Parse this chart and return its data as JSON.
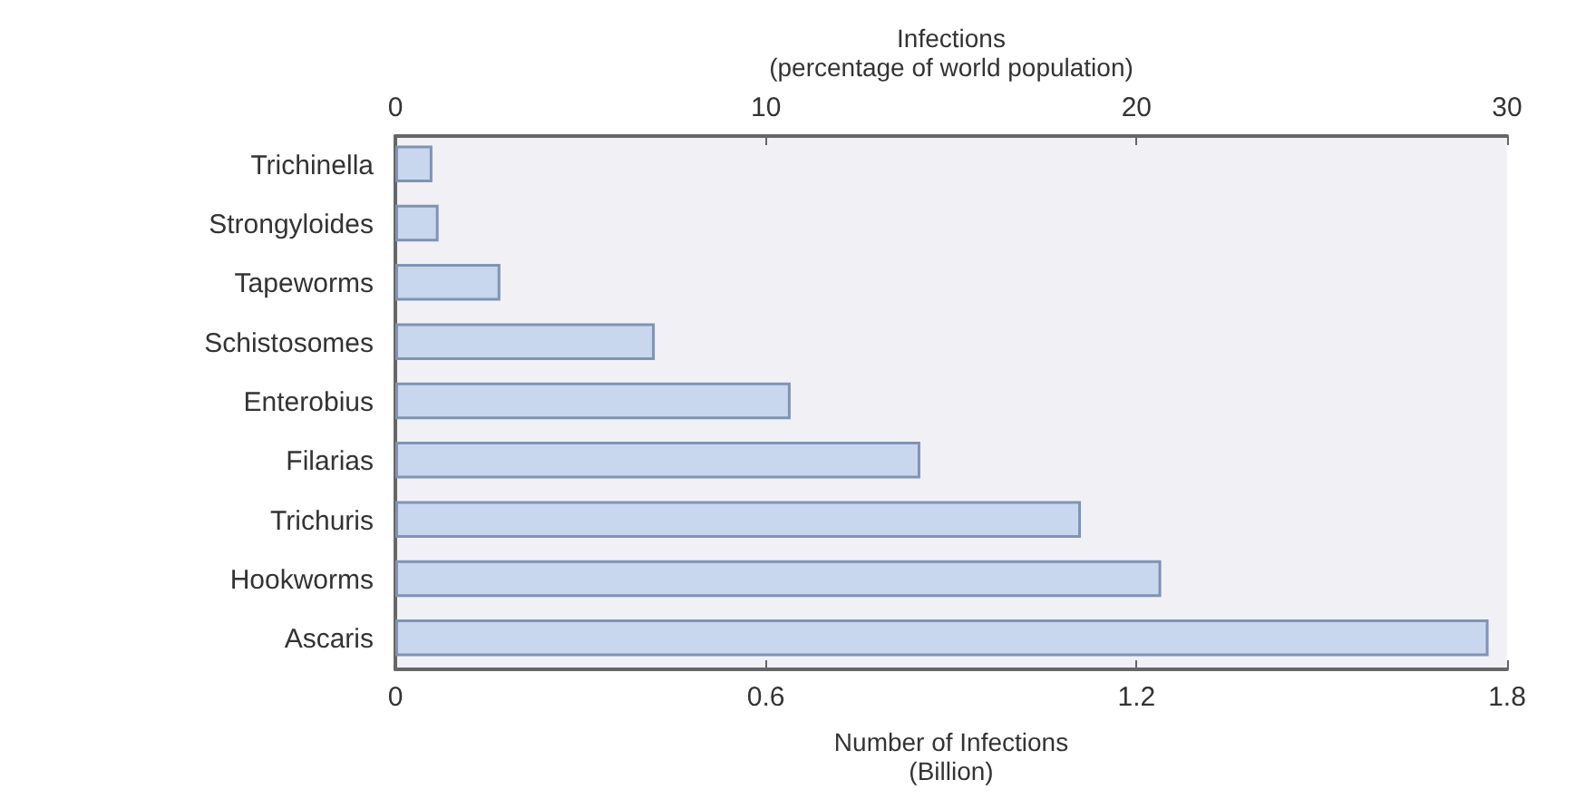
{
  "chart_data": {
    "type": "bar",
    "orientation": "horizontal",
    "categories": [
      "Trichinella",
      "Strongyloides",
      "Tapeworms",
      "Schistosomes",
      "Enterobius",
      "Filarias",
      "Trichuris",
      "Hookworms",
      "Ascaris"
    ],
    "values": [
      0.06,
      0.07,
      0.17,
      0.42,
      0.64,
      0.85,
      1.11,
      1.24,
      1.77
    ],
    "color": "#c9d7ee",
    "xlabel": "Number of Infections\n(Billion)",
    "xlim": [
      0,
      1.8
    ],
    "xticks": [
      0,
      0.6,
      1.2,
      1.8
    ],
    "x2label": "Infections\n(percentage of world population)",
    "x2lim": [
      0,
      30
    ],
    "x2ticks": [
      0,
      10,
      20,
      30
    ],
    "grid": false
  }
}
